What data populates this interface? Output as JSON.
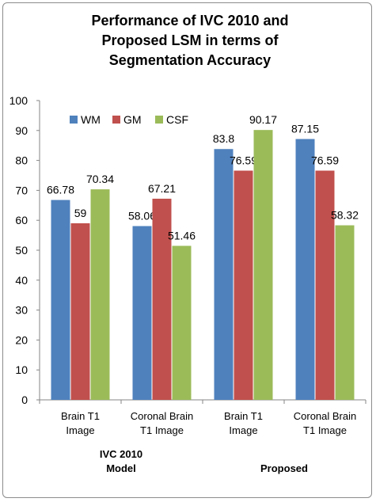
{
  "title_lines": [
    "Performance of IVC 2010 and",
    "Proposed LSM in terms of",
    "Segmentation Accuracy"
  ],
  "chart_data": {
    "type": "bar",
    "title": "Performance of IVC 2010 and Proposed LSM in terms of Segmentation Accuracy",
    "categories": [
      [
        "Brain T1",
        "Image"
      ],
      [
        "Coronal Brain",
        "T1 Image"
      ],
      [
        "Brain T1",
        "Image"
      ],
      [
        "Coronal Brain",
        "T1 Image"
      ]
    ],
    "groups": [
      {
        "label_lines": [
          "IVC 2010",
          "Model"
        ]
      },
      {
        "label_lines": [
          "Proposed"
        ]
      }
    ],
    "series": [
      {
        "name": "WM",
        "color": "#4f81bd",
        "values": [
          66.78,
          58.06,
          83.8,
          87.15
        ],
        "labels": [
          "66.78",
          "58.06",
          "83.8",
          "87.15"
        ]
      },
      {
        "name": "GM",
        "color": "#c0504d",
        "values": [
          59,
          67.21,
          76.59,
          76.59
        ],
        "labels": [
          "59",
          "67.21",
          "76.59",
          "76.59"
        ]
      },
      {
        "name": "CSF",
        "color": "#9bbb59",
        "values": [
          70.34,
          51.46,
          90.17,
          58.32
        ],
        "labels": [
          "70.34",
          "51.46",
          "90.17",
          "58.32"
        ]
      }
    ],
    "ylim": [
      0,
      100
    ],
    "yticks": [
      0,
      10,
      20,
      30,
      40,
      50,
      60,
      70,
      80,
      90,
      100
    ],
    "grid": false,
    "legend": "top-left"
  }
}
